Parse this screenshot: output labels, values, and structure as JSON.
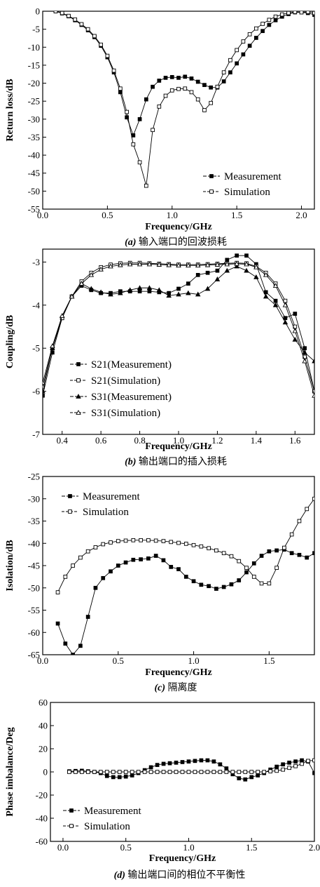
{
  "chart_data": [
    {
      "type": "line",
      "xlabel": "Frequency/GHz",
      "ylabel": "Return loss/dB",
      "xlim": [
        0,
        2.1
      ],
      "ylim": [
        -55,
        0
      ],
      "xticks": [
        0.0,
        0.5,
        1.0,
        1.5,
        2.0
      ],
      "xtick_labels": [
        "0.0",
        "0.5",
        "1.0",
        "1.5",
        "2.0"
      ],
      "yticks": [
        0,
        -5,
        -10,
        -15,
        -20,
        -25,
        -30,
        -35,
        -40,
        -45,
        -50,
        -55
      ],
      "ytick_labels": [
        "0",
        "-5",
        "-10",
        "-15",
        "-20",
        "-25",
        "-30",
        "-35",
        "-40",
        "-45",
        "-50",
        "-55"
      ],
      "grid": false,
      "legend": "bottom-right",
      "caption": {
        "letter": "(a)",
        "text": " 输入端口的回波损耗"
      },
      "series": [
        {
          "name": "Measurement",
          "marker": "filled-square",
          "x": [
            0.1,
            0.15,
            0.2,
            0.25,
            0.3,
            0.35,
            0.4,
            0.45,
            0.5,
            0.55,
            0.6,
            0.65,
            0.7,
            0.75,
            0.8,
            0.85,
            0.9,
            0.95,
            1.0,
            1.05,
            1.1,
            1.15,
            1.2,
            1.25,
            1.3,
            1.35,
            1.4,
            1.45,
            1.5,
            1.55,
            1.6,
            1.65,
            1.7,
            1.75,
            1.8,
            1.85,
            1.9,
            1.95,
            2.0,
            2.05,
            2.1
          ],
          "y": [
            0,
            -0.6,
            -1.4,
            -2.5,
            -3.8,
            -5.3,
            -7.2,
            -9.6,
            -12.8,
            -17,
            -22.5,
            -29.5,
            -34.5,
            -30,
            -24.5,
            -21,
            -19.3,
            -18.5,
            -18.3,
            -18.5,
            -18.2,
            -18.7,
            -19.6,
            -20.5,
            -21.2,
            -21.2,
            -19.5,
            -17,
            -14.5,
            -12,
            -9.6,
            -7.4,
            -5.5,
            -3.8,
            -2.5,
            -1.5,
            -0.8,
            -0.3,
            -0.3,
            -0.5,
            -1
          ]
        },
        {
          "name": "Simulation",
          "marker": "open-square",
          "x": [
            0.1,
            0.15,
            0.2,
            0.25,
            0.3,
            0.35,
            0.4,
            0.45,
            0.5,
            0.55,
            0.6,
            0.65,
            0.7,
            0.75,
            0.8,
            0.85,
            0.9,
            0.95,
            1.0,
            1.05,
            1.1,
            1.15,
            1.2,
            1.25,
            1.3,
            1.35,
            1.4,
            1.45,
            1.5,
            1.55,
            1.6,
            1.65,
            1.7,
            1.75,
            1.8,
            1.85,
            1.9,
            1.95,
            2.0,
            2.05,
            2.1
          ],
          "y": [
            0,
            -0.5,
            -1.3,
            -2.3,
            -3.6,
            -5,
            -6.9,
            -9.3,
            -12.4,
            -16.5,
            -21.5,
            -28,
            -37,
            -42,
            -48.5,
            -33,
            -26.5,
            -23.5,
            -22,
            -21.6,
            -21.5,
            -22.5,
            -24.5,
            -27.5,
            -25.5,
            -21,
            -17,
            -13.6,
            -10.8,
            -8.4,
            -6.4,
            -4.8,
            -3.5,
            -2.4,
            -1.5,
            -0.9,
            -0.5,
            -0.2,
            -0.3,
            -0.2,
            -0.5
          ]
        }
      ]
    },
    {
      "type": "line",
      "xlabel": "Frequency/GHz",
      "ylabel": "Coupling/dB",
      "xlim": [
        0.3,
        1.7
      ],
      "ylim": [
        -7,
        -2.7
      ],
      "xticks": [
        0.4,
        0.6,
        0.8,
        1.0,
        1.2,
        1.4,
        1.6
      ],
      "xtick_labels": [
        "0.4",
        "0.6",
        "0.8",
        "1.0",
        "1.2",
        "1.4",
        "1.6"
      ],
      "yticks": [
        -3,
        -4,
        -5,
        -6,
        -7
      ],
      "ytick_labels": [
        "-3",
        "-4",
        "-5",
        "-6",
        "-7"
      ],
      "grid": false,
      "legend": "bottom-left",
      "caption": {
        "letter": "(b)",
        "text": " 输出端口的插入损耗"
      },
      "series": [
        {
          "name": "S21(Measurement)",
          "marker": "filled-square",
          "x": [
            0.3,
            0.35,
            0.4,
            0.45,
            0.5,
            0.55,
            0.6,
            0.65,
            0.7,
            0.75,
            0.8,
            0.85,
            0.9,
            0.95,
            1.0,
            1.05,
            1.1,
            1.15,
            1.2,
            1.25,
            1.3,
            1.35,
            1.4,
            1.45,
            1.5,
            1.55,
            1.6,
            1.65,
            1.7
          ],
          "y": [
            -6.1,
            -5.1,
            -4.3,
            -3.8,
            -3.55,
            -3.65,
            -3.72,
            -3.72,
            -3.68,
            -3.68,
            -3.68,
            -3.68,
            -3.7,
            -3.72,
            -3.62,
            -3.5,
            -3.3,
            -3.25,
            -3.2,
            -2.95,
            -2.85,
            -2.85,
            -3.05,
            -3.7,
            -3.9,
            -4.3,
            -4.2,
            -5.0,
            -6.0
          ]
        },
        {
          "name": "S21(Simulation)",
          "marker": "open-square",
          "x": [
            0.3,
            0.35,
            0.4,
            0.45,
            0.5,
            0.55,
            0.6,
            0.65,
            0.7,
            0.75,
            0.8,
            0.85,
            0.9,
            0.95,
            1.0,
            1.05,
            1.1,
            1.15,
            1.2,
            1.25,
            1.3,
            1.35,
            1.4,
            1.45,
            1.5,
            1.55,
            1.6,
            1.65,
            1.7
          ],
          "y": [
            -5.9,
            -5.0,
            -4.3,
            -3.8,
            -3.45,
            -3.25,
            -3.12,
            -3.06,
            -3.03,
            -3.02,
            -3.02,
            -3.03,
            -3.04,
            -3.05,
            -3.06,
            -3.06,
            -3.06,
            -3.05,
            -3.04,
            -3.03,
            -3.02,
            -3.03,
            -3.1,
            -3.25,
            -3.5,
            -3.9,
            -4.5,
            -5.2,
            -6.0
          ]
        },
        {
          "name": "S31(Measurement)",
          "marker": "filled-triangle",
          "x": [
            0.3,
            0.35,
            0.4,
            0.45,
            0.5,
            0.55,
            0.6,
            0.65,
            0.7,
            0.75,
            0.8,
            0.85,
            0.9,
            0.95,
            1.0,
            1.05,
            1.1,
            1.15,
            1.2,
            1.25,
            1.3,
            1.35,
            1.4,
            1.45,
            1.5,
            1.55,
            1.6,
            1.65,
            1.7
          ],
          "y": [
            -6.0,
            -5.0,
            -4.25,
            -3.8,
            -3.5,
            -3.62,
            -3.7,
            -3.75,
            -3.72,
            -3.65,
            -3.6,
            -3.6,
            -3.65,
            -3.78,
            -3.75,
            -3.72,
            -3.75,
            -3.62,
            -3.4,
            -3.2,
            -3.1,
            -3.2,
            -3.35,
            -3.8,
            -4.0,
            -4.4,
            -4.8,
            -5.1,
            -5.3
          ]
        },
        {
          "name": "S31(Simulation)",
          "marker": "open-triangle",
          "x": [
            0.3,
            0.35,
            0.4,
            0.45,
            0.5,
            0.55,
            0.6,
            0.65,
            0.7,
            0.75,
            0.8,
            0.85,
            0.9,
            0.95,
            1.0,
            1.05,
            1.1,
            1.15,
            1.2,
            1.25,
            1.3,
            1.35,
            1.4,
            1.45,
            1.5,
            1.55,
            1.6,
            1.65,
            1.7
          ],
          "y": [
            -5.8,
            -4.95,
            -4.25,
            -3.8,
            -3.5,
            -3.3,
            -3.17,
            -3.1,
            -3.07,
            -3.05,
            -3.05,
            -3.05,
            -3.06,
            -3.07,
            -3.08,
            -3.08,
            -3.08,
            -3.07,
            -3.06,
            -3.05,
            -3.04,
            -3.05,
            -3.12,
            -3.3,
            -3.55,
            -4.0,
            -4.6,
            -5.3,
            -6.1
          ]
        }
      ]
    },
    {
      "type": "line",
      "xlabel": "Frequency/GHz",
      "ylabel": "Isolation/dB",
      "xlim": [
        0,
        1.8
      ],
      "ylim": [
        -65,
        -25
      ],
      "xticks": [
        0.0,
        0.5,
        1.0,
        1.5
      ],
      "xtick_labels": [
        "0.0",
        "0.5",
        "1.0",
        "1.5"
      ],
      "yticks": [
        -25,
        -30,
        -35,
        -40,
        -45,
        -50,
        -55,
        -60,
        -65
      ],
      "ytick_labels": [
        "-25",
        "-30",
        "-35",
        "-40",
        "-45",
        "-50",
        "-55",
        "-60",
        "-65"
      ],
      "grid": false,
      "legend": "top-left",
      "caption": {
        "letter": "(c)",
        "text": " 隔离度"
      },
      "series": [
        {
          "name": "Measurement",
          "marker": "filled-square",
          "x": [
            0.1,
            0.15,
            0.2,
            0.25,
            0.3,
            0.35,
            0.4,
            0.45,
            0.5,
            0.55,
            0.6,
            0.65,
            0.7,
            0.75,
            0.8,
            0.85,
            0.9,
            0.95,
            1.0,
            1.05,
            1.1,
            1.15,
            1.2,
            1.25,
            1.3,
            1.35,
            1.4,
            1.45,
            1.5,
            1.55,
            1.6,
            1.65,
            1.7,
            1.75,
            1.8
          ],
          "y": [
            -58,
            -62.5,
            -65,
            -63,
            -56.5,
            -50,
            -47.8,
            -46.3,
            -45,
            -44.3,
            -43.7,
            -43.6,
            -43.4,
            -42.8,
            -43.8,
            -45.3,
            -45.8,
            -47.5,
            -48.5,
            -49.3,
            -49.6,
            -50.2,
            -49.8,
            -49.2,
            -48.3,
            -46.5,
            -44.5,
            -42.8,
            -41.8,
            -41.6,
            -41.4,
            -42.2,
            -42.6,
            -43.2,
            -42.2
          ]
        },
        {
          "name": "Simulation",
          "marker": "open-square",
          "x": [
            0.1,
            0.15,
            0.2,
            0.25,
            0.3,
            0.35,
            0.4,
            0.45,
            0.5,
            0.55,
            0.6,
            0.65,
            0.7,
            0.75,
            0.8,
            0.85,
            0.9,
            0.95,
            1.0,
            1.05,
            1.1,
            1.15,
            1.2,
            1.25,
            1.3,
            1.35,
            1.4,
            1.45,
            1.5,
            1.55,
            1.6,
            1.65,
            1.7,
            1.75,
            1.8
          ],
          "y": [
            -51,
            -47.5,
            -45,
            -43.2,
            -41.8,
            -40.9,
            -40.2,
            -39.8,
            -39.5,
            -39.4,
            -39.3,
            -39.3,
            -39.3,
            -39.4,
            -39.5,
            -39.7,
            -39.9,
            -40.1,
            -40.4,
            -40.7,
            -41.1,
            -41.6,
            -42.2,
            -42.9,
            -44,
            -45.5,
            -47.5,
            -49,
            -49,
            -45.5,
            -41,
            -38,
            -35,
            -32.3,
            -30
          ]
        }
      ]
    },
    {
      "type": "line",
      "xlabel": "Frequency/GHz",
      "ylabel": "Phase imbalance/Deg",
      "xlim": [
        -0.1,
        2.0
      ],
      "ylim": [
        -60,
        60
      ],
      "xticks": [
        0.0,
        0.5,
        1.0,
        1.5,
        2.0
      ],
      "xtick_labels": [
        "0.0",
        "0.5",
        "1.0",
        "1.5",
        "2.0"
      ],
      "yticks": [
        60,
        40,
        20,
        0,
        -20,
        -40,
        -60
      ],
      "ytick_labels": [
        "60",
        "40",
        "20",
        "0",
        "-20",
        "-40",
        "-60"
      ],
      "grid": false,
      "legend": "bottom-left",
      "caption": {
        "letter": "(d)",
        "text": " 输出端口间的相位不平衡性"
      },
      "series": [
        {
          "name": "Measurement",
          "marker": "filled-square",
          "x": [
            0.05,
            0.1,
            0.15,
            0.2,
            0.25,
            0.3,
            0.35,
            0.4,
            0.45,
            0.5,
            0.55,
            0.6,
            0.65,
            0.7,
            0.75,
            0.8,
            0.85,
            0.9,
            0.95,
            1.0,
            1.05,
            1.1,
            1.15,
            1.2,
            1.25,
            1.3,
            1.35,
            1.4,
            1.45,
            1.5,
            1.55,
            1.6,
            1.65,
            1.7,
            1.75,
            1.8,
            1.85,
            1.9,
            1.95,
            2.0
          ],
          "y": [
            0.5,
            0.8,
            1,
            0.5,
            0,
            -1,
            -3.5,
            -4.5,
            -4.5,
            -4,
            -3,
            -1,
            1.5,
            4,
            6,
            7,
            7.5,
            8,
            8.5,
            9,
            9.5,
            10,
            10,
            9,
            6.5,
            3,
            -2,
            -5.5,
            -6.5,
            -4.5,
            -3,
            -1,
            2,
            4.5,
            6.5,
            8,
            9,
            10,
            9,
            -1
          ]
        },
        {
          "name": "Simulation",
          "marker": "open-square",
          "x": [
            0.05,
            0.1,
            0.15,
            0.2,
            0.25,
            0.3,
            0.35,
            0.4,
            0.45,
            0.5,
            0.55,
            0.6,
            0.65,
            0.7,
            0.75,
            0.8,
            0.85,
            0.9,
            0.95,
            1.0,
            1.05,
            1.1,
            1.15,
            1.2,
            1.25,
            1.3,
            1.35,
            1.4,
            1.45,
            1.5,
            1.55,
            1.6,
            1.65,
            1.7,
            1.75,
            1.8,
            1.85,
            1.9,
            1.95,
            2.0
          ],
          "y": [
            0,
            0,
            0,
            0,
            0,
            0,
            0,
            0,
            0,
            0,
            0,
            0,
            0,
            0,
            0,
            0,
            0,
            0,
            0,
            0,
            0,
            0,
            0,
            0,
            0,
            0,
            0,
            0,
            0,
            0,
            0,
            0,
            0.5,
            1,
            2,
            3.5,
            5,
            7,
            9.5,
            10
          ]
        }
      ]
    }
  ]
}
